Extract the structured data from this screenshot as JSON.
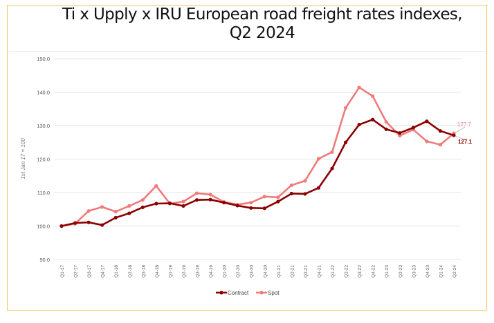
{
  "chart_data": {
    "type": "line",
    "title_line1": "Ti x Upply x IRU European road freight rates indexes,",
    "title_line2": "Q2 2024",
    "ylabel": "1st Jan 17 = 100",
    "xlabel": "",
    "ylim": [
      90,
      150
    ],
    "yticks": [
      "90.0",
      "100.0",
      "110.0",
      "120.0",
      "130.0",
      "140.0",
      "150.0"
    ],
    "grid": true,
    "legend_placement": "bottom",
    "categories": [
      "Q1-17",
      "Q2-17",
      "Q3-17",
      "Q4-17",
      "Q1-18",
      "Q2-18",
      "Q3-18",
      "Q4-18",
      "Q1-19",
      "Q2-19",
      "Q3-19",
      "Q4-19",
      "Q1-20",
      "Q2-20",
      "Q3-20",
      "Q4-20",
      "Q1-21",
      "Q2-21",
      "Q3-21",
      "Q4-21",
      "Q1-22",
      "Q2-22",
      "Q3-22",
      "Q4-22",
      "Q1-23",
      "Q2-23",
      "Q3-23",
      "Q4-23",
      "Q1-24",
      "Q2-24"
    ],
    "series": [
      {
        "name": "Contract",
        "color": "#8b0000",
        "end_label": "127.1",
        "values": [
          100.0,
          100.9,
          101.1,
          100.3,
          102.5,
          103.8,
          105.6,
          106.7,
          106.8,
          106.0,
          107.8,
          107.9,
          107.0,
          106.1,
          105.4,
          105.3,
          107.3,
          109.7,
          109.6,
          111.4,
          117.2,
          125.0,
          130.3,
          131.8,
          128.9,
          127.8,
          129.4,
          131.3,
          128.4,
          127.1
        ]
      },
      {
        "name": "Spot",
        "color": "#ef7b7b",
        "end_label": "127.7",
        "values": [
          100.0,
          100.7,
          104.5,
          105.7,
          104.3,
          106.0,
          107.8,
          112.0,
          106.7,
          107.3,
          109.8,
          109.4,
          107.2,
          106.4,
          107.0,
          108.8,
          108.6,
          112.2,
          113.5,
          120.1,
          122.1,
          135.3,
          141.4,
          138.8,
          131.1,
          127.0,
          128.8,
          125.3,
          124.3,
          127.7
        ]
      }
    ]
  }
}
